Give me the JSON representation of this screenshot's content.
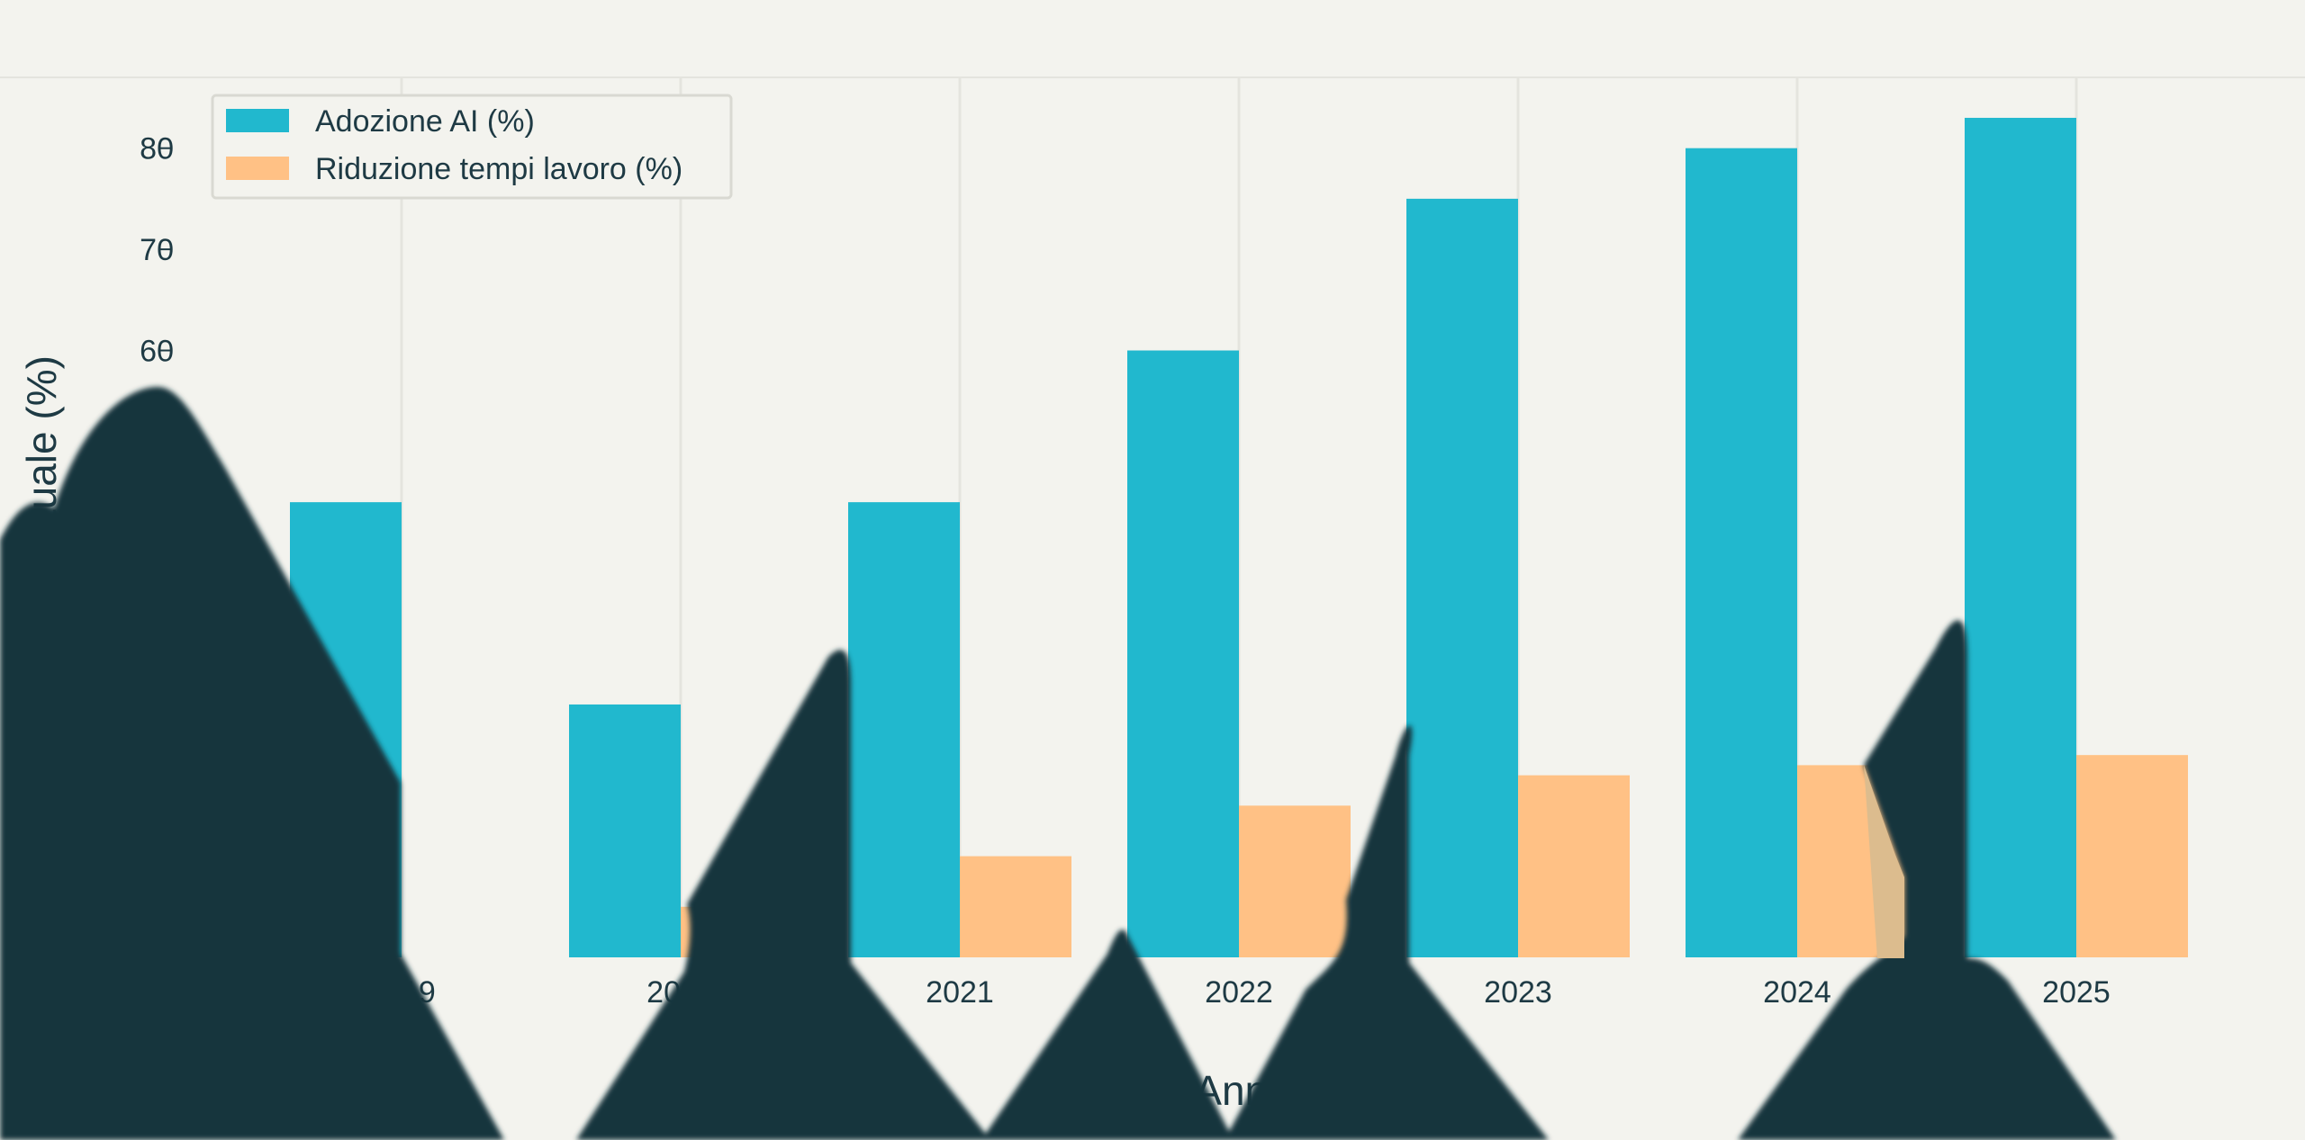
{
  "chart_data": {
    "type": "bar",
    "title": "",
    "xlabel": "Anno",
    "ylabel": "Percentuale (%)",
    "categories": [
      "2019",
      "2020",
      "2021",
      "2022",
      "2023",
      "2024",
      "2025"
    ],
    "series": [
      {
        "name": "Adozione AI (%)",
        "color": "#21b8ce",
        "values": [
          45,
          25,
          45,
          60,
          75,
          80,
          83
        ]
      },
      {
        "name": "Riduzione tempi lavoro (%)",
        "color": "#ffc185",
        "values": [
          0,
          5,
          10,
          15,
          18,
          19,
          20
        ]
      }
    ],
    "ylim": [
      0,
      87
    ],
    "y_ticks": [
      60,
      70,
      80
    ],
    "grid": "vertical",
    "legend_position": "top-left"
  },
  "colors": {
    "background": "#f3f3ee",
    "text": "#1e3a44",
    "grid": "#e4e4de",
    "overlay_shape": "#17343d"
  }
}
